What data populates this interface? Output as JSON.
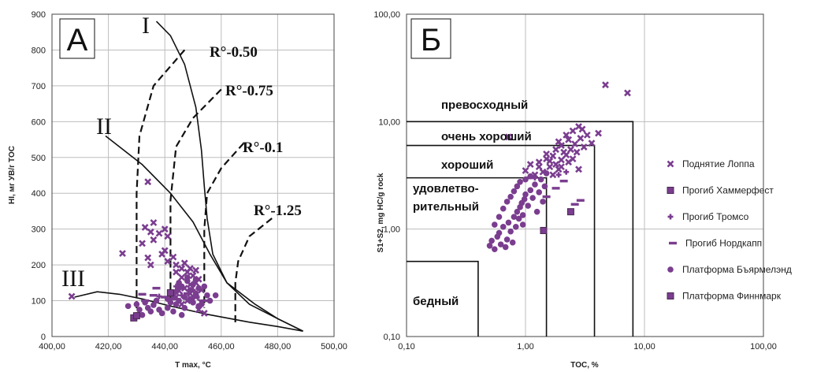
{
  "colors": {
    "marker": "#7a3d8f",
    "marker_dark": "#4a2a52",
    "curve": "#111111"
  },
  "chart_data": [
    {
      "type": "scatter",
      "panel_label": "А",
      "xlabel": "T max, °C",
      "ylabel": "HI, мг УВ/г TOC",
      "xlim": [
        400,
        500
      ],
      "ylim": [
        0,
        900
      ],
      "x_ticks": [
        "400,00",
        "420,00",
        "440,00",
        "460,00",
        "480,00",
        "500,00"
      ],
      "y_ticks": [
        "0",
        "100",
        "200",
        "300",
        "400",
        "500",
        "600",
        "700",
        "800",
        "900"
      ],
      "grid": true,
      "kerogen_labels": [
        "I",
        "II",
        "III"
      ],
      "kerogen_curves": [
        {
          "label": "I",
          "points": [
            [
              437,
              880
            ],
            [
              442,
              840
            ],
            [
              447,
              760
            ],
            [
              451,
              640
            ],
            [
              453,
              520
            ],
            [
              454,
              420
            ],
            [
              455,
              330
            ],
            [
              457,
              230
            ],
            [
              462,
              150
            ],
            [
              470,
              90
            ],
            [
              480,
              50
            ],
            [
              489,
              15
            ]
          ]
        },
        {
          "label": "II",
          "points": [
            [
              419,
              560
            ],
            [
              432,
              480
            ],
            [
              442,
              400
            ],
            [
              450,
              320
            ],
            [
              456,
              230
            ],
            [
              462,
              150
            ],
            [
              472,
              90
            ],
            [
              480,
              50
            ],
            [
              489,
              15
            ]
          ]
        },
        {
          "label": "III",
          "points": [
            [
              408,
              110
            ],
            [
              416,
              125
            ],
            [
              424,
              118
            ],
            [
              432,
              105
            ],
            [
              442,
              85
            ],
            [
              455,
              62
            ],
            [
              470,
              40
            ],
            [
              480,
              28
            ],
            [
              489,
              15
            ]
          ]
        }
      ],
      "maturity_lines": [
        {
          "label": "R°-0.50",
          "points": [
            [
              447,
              800
            ],
            [
              436,
              700
            ],
            [
              431,
              560
            ],
            [
              430,
              400
            ],
            [
              430,
              50
            ]
          ]
        },
        {
          "label": "R°-0.75",
          "points": [
            [
              460,
              690
            ],
            [
              450,
              610
            ],
            [
              444,
              530
            ],
            [
              442,
              380
            ],
            [
              442,
              100
            ]
          ]
        },
        {
          "label": "R°-0.1",
          "points": [
            [
              468,
              540
            ],
            [
              460,
              470
            ],
            [
              455,
              400
            ],
            [
              454,
              300
            ],
            [
              454,
              80
            ]
          ]
        },
        {
          "label": "R°-1.25",
          "points": [
            [
              478,
              330
            ],
            [
              470,
              280
            ],
            [
              466,
              210
            ],
            [
              465,
              150
            ],
            [
              465,
              30
            ]
          ]
        }
      ],
      "series": [
        {
          "name": "Поднятие Лоппа",
          "marker": "x",
          "points": [
            [
              407,
              112
            ],
            [
              425,
              232
            ],
            [
              433,
              305
            ],
            [
              434,
              432
            ],
            [
              436,
              318
            ],
            [
              435,
              292
            ],
            [
              432,
              260
            ],
            [
              434,
              220
            ],
            [
              435,
              200
            ],
            [
              436,
              270
            ],
            [
              438,
              288
            ],
            [
              440,
              300
            ],
            [
              441,
              280
            ],
            [
              440,
              240
            ],
            [
              441,
              210
            ],
            [
              439,
              230
            ],
            [
              443,
              222
            ],
            [
              444,
              200
            ],
            [
              446,
              190
            ],
            [
              448,
              180
            ],
            [
              450,
              170
            ],
            [
              452,
              160
            ],
            [
              449,
              145
            ],
            [
              451,
              150
            ],
            [
              453,
              130
            ],
            [
              447,
              135
            ],
            [
              445,
              128
            ],
            [
              449,
              120
            ],
            [
              451,
              110
            ],
            [
              453,
              95
            ],
            [
              448,
              100
            ],
            [
              446,
              90
            ],
            [
              444,
              110
            ],
            [
              452,
              75
            ],
            [
              454,
              65
            ],
            [
              446,
              165
            ],
            [
              449,
              190
            ],
            [
              451,
              185
            ],
            [
              447,
              205
            ],
            [
              444,
              180
            ]
          ]
        },
        {
          "name": "Прогиб Хаммерфест",
          "marker": "square",
          "points": [
            [
              429,
              52
            ]
          ]
        },
        {
          "name": "Прогиб Тромсо",
          "marker": "plus",
          "points": [
            [
              438,
              112
            ],
            [
              442,
              120
            ],
            [
              444,
              140
            ],
            [
              450,
              130
            ],
            [
              446,
              115
            ]
          ]
        },
        {
          "name": "Прогиб Нордкапп",
          "marker": "dash",
          "points": [
            [
              432,
              118
            ],
            [
              436,
              115
            ],
            [
              437,
              135
            ],
            [
              440,
              110
            ],
            [
              443,
              105
            ],
            [
              445,
              135
            ],
            [
              448,
              120
            ],
            [
              451,
              110
            ],
            [
              454,
              100
            ],
            [
              433,
              100
            ]
          ]
        },
        {
          "name": "Платформа Бъярмелэнд",
          "marker": "circle",
          "points": [
            [
              427,
              85
            ],
            [
              430,
              90
            ],
            [
              431,
              75
            ],
            [
              432,
              60
            ],
            [
              433,
              95
            ],
            [
              434,
              80
            ],
            [
              435,
              70
            ],
            [
              436,
              88
            ],
            [
              437,
              100
            ],
            [
              438,
              75
            ],
            [
              439,
              65
            ],
            [
              441,
              80
            ],
            [
              442,
              95
            ],
            [
              443,
              115
            ],
            [
              444,
              125
            ],
            [
              445,
              100
            ],
            [
              446,
              140
            ],
            [
              447,
              110
            ],
            [
              448,
              155
            ],
            [
              449,
              130
            ],
            [
              450,
              145
            ],
            [
              451,
              120
            ],
            [
              452,
              135
            ],
            [
              453,
              90
            ],
            [
              454,
              140
            ],
            [
              455,
              115
            ],
            [
              456,
              100
            ],
            [
              458,
              115
            ],
            [
              444,
              90
            ],
            [
              447,
              80
            ],
            [
              450,
              95
            ],
            [
              443,
              70
            ],
            [
              446,
              60
            ],
            [
              441,
              105
            ],
            [
              449,
              105
            ],
            [
              452,
              85
            ],
            [
              445,
              150
            ],
            [
              448,
              165
            ],
            [
              451,
              160
            ]
          ]
        },
        {
          "name": "Платформа Финнмарк",
          "marker": "square",
          "points": [
            [
              430,
              58
            ],
            [
              442,
              122
            ]
          ]
        }
      ]
    },
    {
      "type": "scatter",
      "panel_label": "Б",
      "xlabel": "TOC, %",
      "ylabel": "S1+S2, mg HC/g rock",
      "xscale": "log",
      "yscale": "log",
      "xlim": [
        0.1,
        100
      ],
      "ylim": [
        0.1,
        100
      ],
      "x_ticks": [
        "0,10",
        "1,00",
        "10,00",
        "100,00"
      ],
      "y_ticks": [
        "0,10",
        "1,00",
        "10,00",
        "100,00"
      ],
      "grid": true,
      "class_labels": [
        "превосходный",
        "очень хороший",
        "хороший",
        "удовлетво-",
        "рительный",
        "бедный"
      ],
      "class_boxes": [
        {
          "name": "бедный",
          "toc_max": 0.4,
          "s_max": 0.5
        },
        {
          "name": "удовлетворительный",
          "toc_max": 1.5,
          "s_max": 3
        },
        {
          "name": "хороший",
          "toc_max": 3.8,
          "s_max": 6
        },
        {
          "name": "очень хороший",
          "toc_max": 8,
          "s_max": 10
        }
      ],
      "legend_placement": "right",
      "series": [
        {
          "name": "Поднятие Лоппа",
          "marker": "x",
          "points": [
            [
              4.7,
              22
            ],
            [
              7.2,
              18.5
            ],
            [
              0.72,
              7.2
            ],
            [
              2.8,
              9
            ],
            [
              3.0,
              8.5
            ],
            [
              2.5,
              8.2
            ],
            [
              2.2,
              7.5
            ],
            [
              1.9,
              6.5
            ],
            [
              2.0,
              6.0
            ],
            [
              1.8,
              5.5
            ],
            [
              2.3,
              6.8
            ],
            [
              2.6,
              6.2
            ],
            [
              2.9,
              7.0
            ],
            [
              3.3,
              7.5
            ],
            [
              3.6,
              6.3
            ],
            [
              4.1,
              7.8
            ],
            [
              2.1,
              5.2
            ],
            [
              1.7,
              4.8
            ],
            [
              1.5,
              4.5
            ],
            [
              1.3,
              4.2
            ],
            [
              1.6,
              3.8
            ],
            [
              1.8,
              4.0
            ],
            [
              2.0,
              4.4
            ],
            [
              2.2,
              4.9
            ],
            [
              2.4,
              5.5
            ],
            [
              1.9,
              3.6
            ],
            [
              1.4,
              3.4
            ],
            [
              1.2,
              3.2
            ],
            [
              1.1,
              4.0
            ],
            [
              1.0,
              3.5
            ],
            [
              1.7,
              3.2
            ],
            [
              2.5,
              4.5
            ],
            [
              2.7,
              5.2
            ],
            [
              3.1,
              5.8
            ],
            [
              2.8,
              3.6
            ],
            [
              1.5,
              5.0
            ],
            [
              2.0,
              3.8
            ],
            [
              1.6,
              4.3
            ],
            [
              1.3,
              3.8
            ],
            [
              2.3,
              4.2
            ]
          ]
        },
        {
          "name": "Прогиб Хаммерфест",
          "marker": "square",
          "points": [
            [
              2.4,
              1.45
            ]
          ]
        },
        {
          "name": "Прогиб Тромсо",
          "marker": "plus",
          "points": [
            [
              1.2,
              3.0
            ],
            [
              1.9,
              3.2
            ],
            [
              2.2,
              3.4
            ]
          ]
        },
        {
          "name": "Прогиб Нордкапп",
          "marker": "dash",
          "points": [
            [
              1.8,
              2.4
            ],
            [
              2.6,
              1.7
            ],
            [
              2.9,
              1.85
            ],
            [
              1.1,
              3.0
            ],
            [
              1.5,
              2.0
            ],
            [
              2.1,
              2.8
            ]
          ]
        },
        {
          "name": "Платформа Бъярмелэнд",
          "marker": "circle",
          "points": [
            [
              0.5,
              0.7
            ],
            [
              0.52,
              0.78
            ],
            [
              0.55,
              0.65
            ],
            [
              0.58,
              0.85
            ],
            [
              0.6,
              0.92
            ],
            [
              0.62,
              0.72
            ],
            [
              0.65,
              1.05
            ],
            [
              0.68,
              0.68
            ],
            [
              0.7,
              0.8
            ],
            [
              0.72,
              1.15
            ],
            [
              0.75,
              0.95
            ],
            [
              0.78,
              0.75
            ],
            [
              0.8,
              1.3
            ],
            [
              0.83,
              1.05
            ],
            [
              0.85,
              1.45
            ],
            [
              0.88,
              1.25
            ],
            [
              0.9,
              1.6
            ],
            [
              0.93,
              1.75
            ],
            [
              0.95,
              1.35
            ],
            [
              0.98,
              1.9
            ],
            [
              1.0,
              2.1
            ],
            [
              1.05,
              1.65
            ],
            [
              1.1,
              2.3
            ],
            [
              1.15,
              1.95
            ],
            [
              1.2,
              2.6
            ],
            [
              1.25,
              1.45
            ],
            [
              1.3,
              2.2
            ],
            [
              1.35,
              2.9
            ],
            [
              1.4,
              1.8
            ],
            [
              1.45,
              2.5
            ],
            [
              0.6,
              1.3
            ],
            [
              0.65,
              1.55
            ],
            [
              0.7,
              1.8
            ],
            [
              0.75,
              2.0
            ],
            [
              0.8,
              2.25
            ],
            [
              0.85,
              2.5
            ],
            [
              0.9,
              2.75
            ],
            [
              1.0,
              2.9
            ],
            [
              1.1,
              3.1
            ],
            [
              1.5,
              3.3
            ],
            [
              0.55,
              1.1
            ],
            [
              0.95,
              1.1
            ]
          ]
        },
        {
          "name": "Платформа Финнмарк",
          "marker": "square",
          "points": [
            [
              1.42,
              0.97
            ]
          ]
        }
      ]
    }
  ]
}
